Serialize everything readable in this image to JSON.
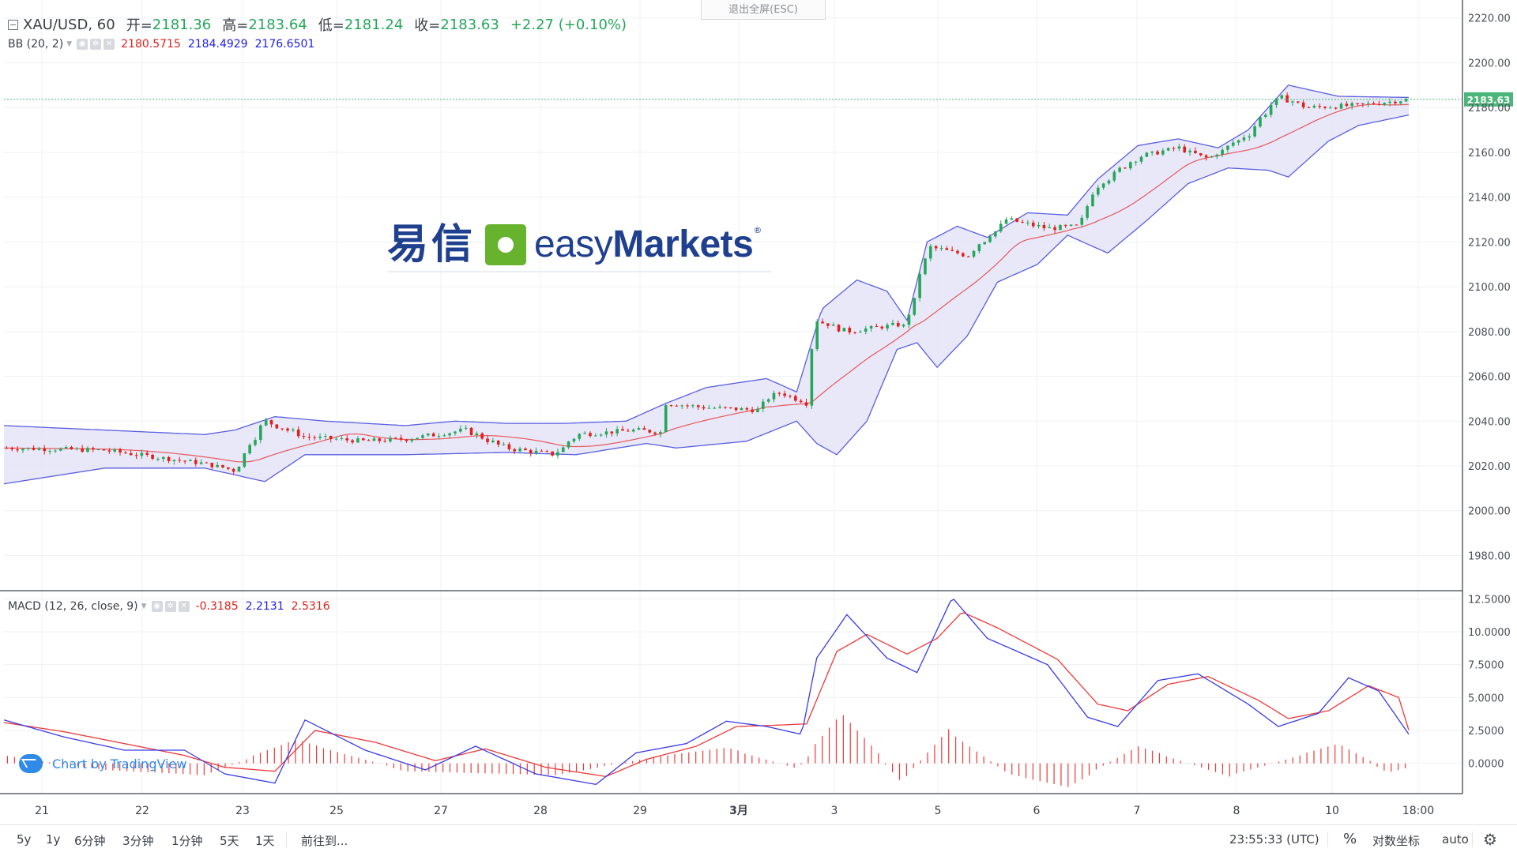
{
  "window": {
    "exit_fullscreen_label": "退出全屏(ESC)"
  },
  "legend": {
    "symbol": "XAU/USD, 60",
    "open_label": "开=",
    "open": "2181.36",
    "high_label": "高=",
    "high": "2183.64",
    "low_label": "低=",
    "low": "2181.24",
    "close_label": "收=",
    "close": "2183.63",
    "change": "+2.27 (+0.10%)"
  },
  "bb_legend": {
    "name": "BB (20, 2)",
    "basis": "2180.5715",
    "upper": "2184.4929",
    "lower": "2176.6501"
  },
  "macd_legend": {
    "name": "MACD (12, 26, close, 9)",
    "histogram": "-0.3185",
    "macd": "2.2131",
    "signal": "2.5316"
  },
  "brand": {
    "chinese": "易信",
    "prefix": "easy",
    "suffix": "Markets",
    "reg": "®"
  },
  "credit": {
    "text": "Chart by TradingView"
  },
  "bottom_bar": {
    "ranges": [
      "5y",
      "1y",
      "6分钟",
      "3分钟",
      "1分钟",
      "5天",
      "1天"
    ],
    "goto_label": "前往到...",
    "clock": "23:55:33 (UTC)",
    "percent_label": "%",
    "log_label": "对数坐标",
    "auto_label": "auto",
    "settings_icon": "gear-icon"
  },
  "colors": {
    "up": "#26a65b",
    "down": "#e0201b",
    "bb_band": "#5a5ee0",
    "bb_fill": "#e4e4f7",
    "bb_basis": "#e8585d",
    "macd_line": "#3a3ae6",
    "signal_line": "#ee3838",
    "histogram": "#ee3838",
    "price_tag": "#4ab679",
    "grid": "#eef1f4"
  },
  "chart_data": [
    {
      "type": "candlestick",
      "title": "XAU/USD, 60",
      "last_price": 2183.63,
      "ylim": [
        1965,
        2228
      ],
      "y_ticks": [
        "2220.00",
        "2200.00",
        "2180.00",
        "2160.00",
        "2140.00",
        "2120.00",
        "2100.00",
        "2080.00",
        "2060.00",
        "2040.00",
        "2020.00",
        "2000.00",
        "1980.00"
      ],
      "x_ticks": [
        "21",
        "22",
        "23",
        "25",
        "27",
        "28",
        "29",
        "3月",
        "3",
        "5",
        "6",
        "7",
        "8",
        "10",
        "18:00"
      ],
      "grid": true,
      "close_series_points": [
        {
          "t": 0,
          "close": 2028
        },
        {
          "t": 1,
          "close": 2027
        },
        {
          "t": 2,
          "close": 2021
        },
        {
          "t": 2.3,
          "close": 2018
        },
        {
          "t": 2.6,
          "close": 2040
        },
        {
          "t": 3,
          "close": 2033
        },
        {
          "t": 3.6,
          "close": 2031
        },
        {
          "t": 4,
          "close": 2032
        },
        {
          "t": 4.6,
          "close": 2036
        },
        {
          "t": 5,
          "close": 2028
        },
        {
          "t": 5.5,
          "close": 2025
        },
        {
          "t": 5.7,
          "close": 2034
        },
        {
          "t": 6.3,
          "close": 2036
        },
        {
          "t": 6.55,
          "close": 2035
        },
        {
          "t": 6.6,
          "close": 2048
        },
        {
          "t": 7,
          "close": 2046
        },
        {
          "t": 7.5,
          "close": 2045
        },
        {
          "t": 7.7,
          "close": 2053
        },
        {
          "t": 7.9,
          "close": 2050
        },
        {
          "t": 8,
          "close": 2048
        },
        {
          "t": 8.1,
          "close": 2085
        },
        {
          "t": 8.4,
          "close": 2080
        },
        {
          "t": 8.9,
          "close": 2083
        },
        {
          "t": 9,
          "close": 2082
        },
        {
          "t": 9.2,
          "close": 2118
        },
        {
          "t": 9.6,
          "close": 2114
        },
        {
          "t": 10,
          "close": 2130
        },
        {
          "t": 10.4,
          "close": 2126
        },
        {
          "t": 10.7,
          "close": 2127
        },
        {
          "t": 10.9,
          "close": 2145
        },
        {
          "t": 11.3,
          "close": 2158
        },
        {
          "t": 11.7,
          "close": 2162
        },
        {
          "t": 12,
          "close": 2157
        },
        {
          "t": 12.4,
          "close": 2168
        },
        {
          "t": 12.7,
          "close": 2185
        },
        {
          "t": 13,
          "close": 2180
        },
        {
          "t": 13.5,
          "close": 2181
        },
        {
          "t": 14,
          "close": 2183.63
        }
      ],
      "bb_upper_points": [
        {
          "t": 0,
          "u": 2038
        },
        {
          "t": 1,
          "u": 2036
        },
        {
          "t": 2,
          "u": 2034
        },
        {
          "t": 2.3,
          "u": 2036
        },
        {
          "t": 2.7,
          "u": 2042
        },
        {
          "t": 3.2,
          "u": 2040
        },
        {
          "t": 4,
          "u": 2038
        },
        {
          "t": 4.5,
          "u": 2040
        },
        {
          "t": 5,
          "u": 2039
        },
        {
          "t": 5.6,
          "u": 2039
        },
        {
          "t": 6.2,
          "u": 2040
        },
        {
          "t": 6.6,
          "u": 2048
        },
        {
          "t": 7,
          "u": 2055
        },
        {
          "t": 7.6,
          "u": 2059
        },
        {
          "t": 7.9,
          "u": 2053
        },
        {
          "t": 8.15,
          "u": 2090
        },
        {
          "t": 8.5,
          "u": 2103
        },
        {
          "t": 8.8,
          "u": 2098
        },
        {
          "t": 9.0,
          "u": 2085
        },
        {
          "t": 9.2,
          "u": 2120
        },
        {
          "t": 9.5,
          "u": 2127
        },
        {
          "t": 9.8,
          "u": 2122
        },
        {
          "t": 10.2,
          "u": 2133
        },
        {
          "t": 10.6,
          "u": 2132
        },
        {
          "t": 10.9,
          "u": 2148
        },
        {
          "t": 11.3,
          "u": 2163
        },
        {
          "t": 11.7,
          "u": 2166
        },
        {
          "t": 12.1,
          "u": 2162
        },
        {
          "t": 12.4,
          "u": 2170
        },
        {
          "t": 12.8,
          "u": 2190
        },
        {
          "t": 13.3,
          "u": 2185
        },
        {
          "t": 14,
          "u": 2184.49
        }
      ],
      "bb_lower_points": [
        {
          "t": 0,
          "l": 2012
        },
        {
          "t": 1,
          "l": 2019
        },
        {
          "t": 2,
          "l": 2019
        },
        {
          "t": 2.6,
          "l": 2013
        },
        {
          "t": 3,
          "l": 2025
        },
        {
          "t": 4,
          "l": 2025
        },
        {
          "t": 5,
          "l": 2026
        },
        {
          "t": 5.7,
          "l": 2025
        },
        {
          "t": 6.4,
          "l": 2030
        },
        {
          "t": 6.7,
          "l": 2028
        },
        {
          "t": 7.4,
          "l": 2031
        },
        {
          "t": 7.9,
          "l": 2040
        },
        {
          "t": 8.1,
          "l": 2030
        },
        {
          "t": 8.3,
          "l": 2025
        },
        {
          "t": 8.6,
          "l": 2040
        },
        {
          "t": 8.9,
          "l": 2072
        },
        {
          "t": 9.1,
          "l": 2075
        },
        {
          "t": 9.3,
          "l": 2064
        },
        {
          "t": 9.6,
          "l": 2078
        },
        {
          "t": 9.9,
          "l": 2102
        },
        {
          "t": 10.3,
          "l": 2110
        },
        {
          "t": 10.6,
          "l": 2123
        },
        {
          "t": 11,
          "l": 2115
        },
        {
          "t": 11.4,
          "l": 2130
        },
        {
          "t": 11.8,
          "l": 2146
        },
        {
          "t": 12.2,
          "l": 2153
        },
        {
          "t": 12.6,
          "l": 2152
        },
        {
          "t": 12.8,
          "l": 2149
        },
        {
          "t": 13.2,
          "l": 2165
        },
        {
          "t": 13.5,
          "l": 2172
        },
        {
          "t": 14,
          "l": 2176.65
        }
      ]
    },
    {
      "type": "line",
      "title": "MACD (12, 26, close, 9)",
      "ylim": [
        -2.3,
        13.0
      ],
      "y_ticks": [
        "12.5000",
        "10.0000",
        "7.5000",
        "5.0000",
        "2.5000",
        "0.0000"
      ],
      "series": [
        {
          "name": "MACD",
          "points": [
            {
              "t": 0,
              "v": 3.3
            },
            {
              "t": 0.6,
              "v": 2.0
            },
            {
              "t": 1.2,
              "v": 1.0
            },
            {
              "t": 1.8,
              "v": 1.0
            },
            {
              "t": 2.2,
              "v": -0.8
            },
            {
              "t": 2.7,
              "v": -1.5
            },
            {
              "t": 3.0,
              "v": 3.3
            },
            {
              "t": 3.6,
              "v": 1.0
            },
            {
              "t": 4.2,
              "v": -0.5
            },
            {
              "t": 4.7,
              "v": 1.3
            },
            {
              "t": 5.3,
              "v": -0.8
            },
            {
              "t": 5.9,
              "v": -1.6
            },
            {
              "t": 6.3,
              "v": 0.8
            },
            {
              "t": 6.8,
              "v": 1.5
            },
            {
              "t": 7.2,
              "v": 3.2
            },
            {
              "t": 7.6,
              "v": 2.8
            },
            {
              "t": 7.95,
              "v": 2.2
            },
            {
              "t": 8.1,
              "v": 8.0
            },
            {
              "t": 8.4,
              "v": 11.3
            },
            {
              "t": 8.8,
              "v": 8.0
            },
            {
              "t": 9.1,
              "v": 6.9
            },
            {
              "t": 9.45,
              "v": 12.6
            },
            {
              "t": 9.8,
              "v": 9.5
            },
            {
              "t": 10.4,
              "v": 7.5
            },
            {
              "t": 10.8,
              "v": 3.5
            },
            {
              "t": 11.1,
              "v": 2.8
            },
            {
              "t": 11.5,
              "v": 6.3
            },
            {
              "t": 11.9,
              "v": 6.8
            },
            {
              "t": 12.4,
              "v": 4.5
            },
            {
              "t": 12.7,
              "v": 2.8
            },
            {
              "t": 13.1,
              "v": 3.8
            },
            {
              "t": 13.4,
              "v": 6.5
            },
            {
              "t": 13.7,
              "v": 5.5
            },
            {
              "t": 14,
              "v": 2.2131
            }
          ]
        },
        {
          "name": "Signal",
          "points": [
            {
              "t": 0,
              "v": 3.1
            },
            {
              "t": 0.6,
              "v": 2.4
            },
            {
              "t": 1.2,
              "v": 1.5
            },
            {
              "t": 1.8,
              "v": 0.6
            },
            {
              "t": 2.2,
              "v": -0.3
            },
            {
              "t": 2.7,
              "v": -0.6
            },
            {
              "t": 3.1,
              "v": 2.5
            },
            {
              "t": 3.7,
              "v": 1.6
            },
            {
              "t": 4.3,
              "v": 0.2
            },
            {
              "t": 4.8,
              "v": 1.1
            },
            {
              "t": 5.4,
              "v": -0.3
            },
            {
              "t": 6.0,
              "v": -1.0
            },
            {
              "t": 6.4,
              "v": 0.3
            },
            {
              "t": 6.9,
              "v": 1.3
            },
            {
              "t": 7.3,
              "v": 2.8
            },
            {
              "t": 7.7,
              "v": 2.9
            },
            {
              "t": 8.0,
              "v": 3.0
            },
            {
              "t": 8.3,
              "v": 8.5
            },
            {
              "t": 8.6,
              "v": 9.8
            },
            {
              "t": 9.0,
              "v": 8.3
            },
            {
              "t": 9.3,
              "v": 9.5
            },
            {
              "t": 9.55,
              "v": 11.5
            },
            {
              "t": 9.9,
              "v": 10.3
            },
            {
              "t": 10.5,
              "v": 7.9
            },
            {
              "t": 10.9,
              "v": 4.5
            },
            {
              "t": 11.2,
              "v": 4.0
            },
            {
              "t": 11.6,
              "v": 6.0
            },
            {
              "t": 12.0,
              "v": 6.6
            },
            {
              "t": 12.5,
              "v": 4.8
            },
            {
              "t": 12.8,
              "v": 3.4
            },
            {
              "t": 13.2,
              "v": 4.0
            },
            {
              "t": 13.6,
              "v": 5.9
            },
            {
              "t": 13.9,
              "v": 5.0
            },
            {
              "t": 14,
              "v": 2.5316
            }
          ]
        },
        {
          "name": "Histogram",
          "points": [
            {
              "t": 0,
              "v": 0.6
            },
            {
              "t": 1,
              "v": -0.5
            },
            {
              "t": 2,
              "v": -0.9
            },
            {
              "t": 2.9,
              "v": 1.8
            },
            {
              "t": 4,
              "v": -0.6
            },
            {
              "t": 5.5,
              "v": -0.9
            },
            {
              "t": 6.5,
              "v": 0.5
            },
            {
              "t": 7.2,
              "v": 1.2
            },
            {
              "t": 7.9,
              "v": -0.4
            },
            {
              "t": 8.35,
              "v": 3.8
            },
            {
              "t": 8.95,
              "v": -1.4
            },
            {
              "t": 9.4,
              "v": 2.6
            },
            {
              "t": 10.0,
              "v": -0.8
            },
            {
              "t": 10.6,
              "v": -1.8
            },
            {
              "t": 11.3,
              "v": 1.3
            },
            {
              "t": 12.2,
              "v": -1.0
            },
            {
              "t": 13.3,
              "v": 1.5
            },
            {
              "t": 13.8,
              "v": -0.7
            },
            {
              "t": 14,
              "v": -0.3185
            }
          ]
        }
      ]
    }
  ]
}
